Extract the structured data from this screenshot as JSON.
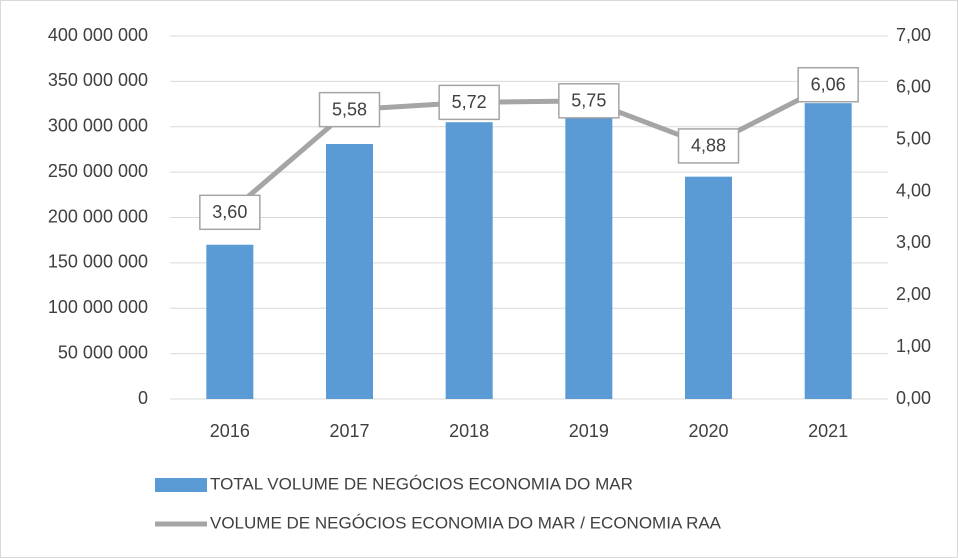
{
  "chart_data": {
    "type": "bar",
    "categories": [
      "2016",
      "2017",
      "2018",
      "2019",
      "2020",
      "2021"
    ],
    "series": [
      {
        "name": "TOTAL VOLUME DE NEGÓCIOS ECONOMIA DO MAR",
        "type": "bar",
        "color": "#5b9bd5",
        "values": [
          170000000,
          281000000,
          305000000,
          310000000,
          245000000,
          326000000
        ]
      },
      {
        "name": "VOLUME DE NEGÓCIOS ECONOMIA DO MAR /  ECONOMIA RAA",
        "type": "line",
        "axis": "y2",
        "color": "#a5a5a5",
        "values": [
          3.6,
          5.58,
          5.72,
          5.75,
          4.88,
          6.06
        ],
        "value_labels": [
          "3,60",
          "5,58",
          "5,72",
          "5,75",
          "4,88",
          "6,06"
        ]
      }
    ],
    "ylim": [
      0,
      400000000
    ],
    "yticks": [
      0,
      {
        "value": 50000000,
        "label": "50 000 000"
      },
      {
        "value": 100000000,
        "label": "100 000 000"
      },
      {
        "value": 150000000,
        "label": "150 000 000"
      },
      {
        "value": 200000000,
        "label": "200 000 000"
      },
      {
        "value": 250000000,
        "label": "250 000 000"
      },
      {
        "value": 300000000,
        "label": "300 000 000"
      },
      {
        "value": 350000000,
        "label": "350 000 000"
      },
      {
        "value": 400000000,
        "label": "400 000 000"
      }
    ],
    "y2lim": [
      0,
      7
    ],
    "y2ticks": [
      {
        "value": 0,
        "label": "0,00"
      },
      {
        "value": 1,
        "label": "1,00"
      },
      {
        "value": 2,
        "label": "2,00"
      },
      {
        "value": 3,
        "label": "3,00"
      },
      {
        "value": 4,
        "label": "4,00"
      },
      {
        "value": 5,
        "label": "5,00"
      },
      {
        "value": 6,
        "label": "6,00"
      },
      {
        "value": 7,
        "label": "7,00"
      }
    ],
    "grid": true,
    "legend": "bottom"
  }
}
